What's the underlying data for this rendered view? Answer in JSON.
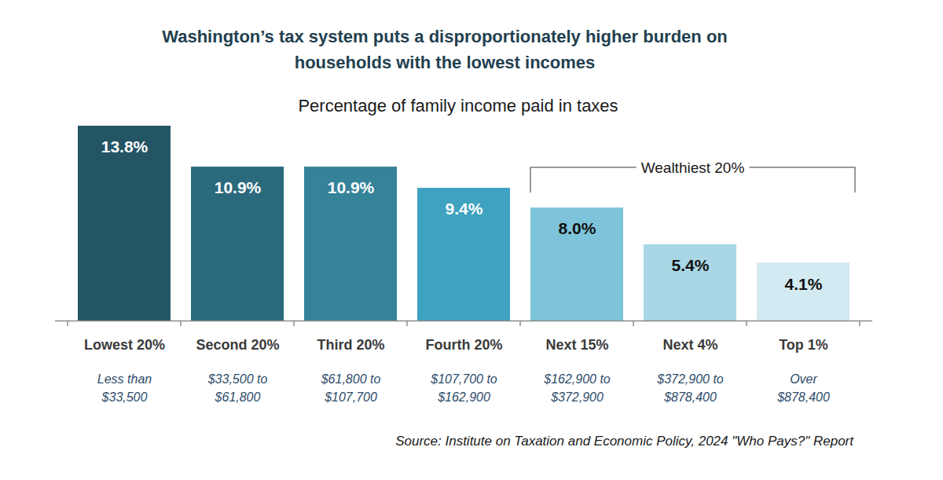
{
  "chart_data": {
    "type": "bar",
    "title": "Washington’s tax system puts a disproportionately higher burden on\nhouseholds with the lowest incomes",
    "subtitle": "Percentage of family income paid in taxes",
    "categories": [
      "Lowest 20%",
      "Second 20%",
      "Third 20%",
      "Fourth 20%",
      "Next 15%",
      "Next 4%",
      "Top 1%"
    ],
    "category_descriptions": [
      "Less than\n$33,500",
      "$33,500 to\n$61,800",
      "$61,800 to\n$107,700",
      "$107,700 to\n$162,900",
      "$162,900 to\n$372,900",
      "$372,900 to\n$878,400",
      "Over\n$878,400"
    ],
    "values": [
      13.8,
      10.9,
      10.9,
      9.4,
      8.0,
      5.4,
      4.1
    ],
    "value_labels": [
      "13.8%",
      "10.9%",
      "10.9%",
      "9.4%",
      "8.0%",
      "5.4%",
      "4.1%"
    ],
    "colors": [
      "#245565",
      "#2b6a7d",
      "#348399",
      "#3fa2c0",
      "#7dc3d9",
      "#a9d7e5",
      "#d2eaf2"
    ],
    "ylim": [
      0,
      13.8
    ],
    "tick_labels": "x",
    "data_labels": true,
    "annotations": [
      {
        "text": "Wealthiest 20%",
        "categories": [
          "Next 15%",
          "Next 4%",
          "Top 1%"
        ]
      }
    ],
    "source": "Source: Institute on Taxation and Economic Policy, 2024 \"Who Pays?\" Report"
  }
}
